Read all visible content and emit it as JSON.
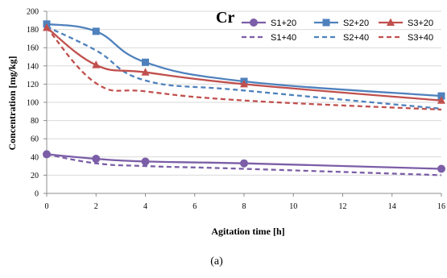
{
  "chart_data": {
    "type": "line",
    "title": "Cr",
    "xlabel": "Agitation time [h]",
    "ylabel": "Concentration [mg/kg]",
    "caption": "(a)",
    "xlim": [
      0,
      16
    ],
    "ylim": [
      0,
      200
    ],
    "xticks": [
      0,
      2,
      4,
      6,
      8,
      10,
      12,
      14,
      16
    ],
    "yticks": [
      0,
      20,
      40,
      60,
      80,
      100,
      120,
      140,
      160,
      180,
      200
    ],
    "grid": true,
    "legend_position": "top-right",
    "series": [
      {
        "name": "S1+20",
        "color": "#7B5EA7",
        "style": "solid",
        "marker": "circle",
        "points": [
          [
            0,
            43
          ],
          [
            2,
            38
          ],
          [
            4,
            35
          ],
          [
            8,
            33
          ],
          [
            16,
            27
          ]
        ]
      },
      {
        "name": "S2+20",
        "color": "#4F81BD",
        "style": "solid",
        "marker": "square",
        "points": [
          [
            0,
            186
          ],
          [
            2,
            178
          ],
          [
            4,
            144
          ],
          [
            8,
            123
          ],
          [
            16,
            107
          ]
        ]
      },
      {
        "name": "S3+20",
        "color": "#C0504D",
        "style": "solid",
        "marker": "triangle",
        "points": [
          [
            0,
            182
          ],
          [
            2,
            141
          ],
          [
            4,
            133
          ],
          [
            8,
            120
          ],
          [
            16,
            102
          ]
        ]
      },
      {
        "name": "S1+40",
        "color": "#7B5EA7",
        "style": "dashed",
        "marker": "none",
        "points": [
          [
            0,
            43
          ],
          [
            2,
            33
          ],
          [
            4,
            30
          ],
          [
            8,
            27
          ],
          [
            16,
            20
          ]
        ]
      },
      {
        "name": "S2+40",
        "color": "#4F81BD",
        "style": "dashed",
        "marker": "none",
        "points": [
          [
            0,
            183
          ],
          [
            2,
            157
          ],
          [
            4,
            124
          ],
          [
            8,
            113
          ],
          [
            16,
            93
          ]
        ]
      },
      {
        "name": "S3+40",
        "color": "#C0504D",
        "style": "dashed",
        "marker": "none",
        "points": [
          [
            0,
            182
          ],
          [
            2,
            121
          ],
          [
            4,
            112
          ],
          [
            8,
            102
          ],
          [
            16,
            92
          ]
        ]
      }
    ]
  }
}
